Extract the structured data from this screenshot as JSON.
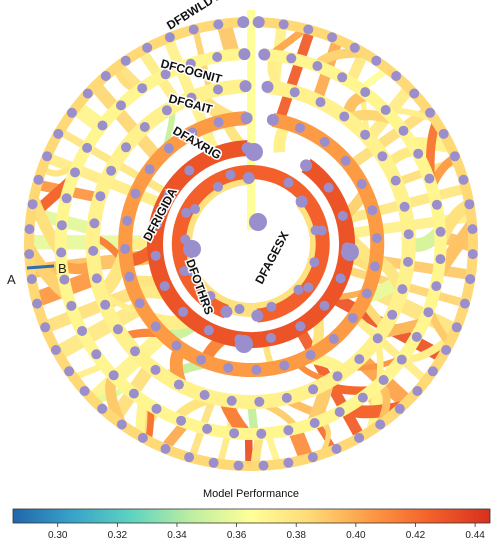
{
  "rings": [
    {
      "label": "DFBWLDYS",
      "weight": 0.385
    },
    {
      "label": "DFCOGNIT",
      "weight": 0.37
    },
    {
      "label": "DFGAIT",
      "weight": 0.372
    },
    {
      "label": "DFAXRIG",
      "weight": 0.405
    },
    {
      "label": "DFRIGIDA",
      "weight": 0.43
    },
    {
      "label": "DFOTHRS",
      "weight": 0.38
    },
    {
      "label": "DFAGESX",
      "weight": 0.425
    }
  ],
  "markers": {
    "a": "A",
    "b": "B"
  },
  "colorbar": {
    "title": "Model Performance",
    "min": 0.285,
    "max": 0.445,
    "ticks": [
      "0.30",
      "0.32",
      "0.34",
      "0.36",
      "0.38",
      "0.40",
      "0.42",
      "0.44"
    ],
    "stops": [
      "#2166ac",
      "#38a3c9",
      "#5fd4c0",
      "#bfeea0",
      "#ffff99",
      "#fed976",
      "#fd9a44",
      "#f3602b",
      "#d7301f"
    ]
  }
}
